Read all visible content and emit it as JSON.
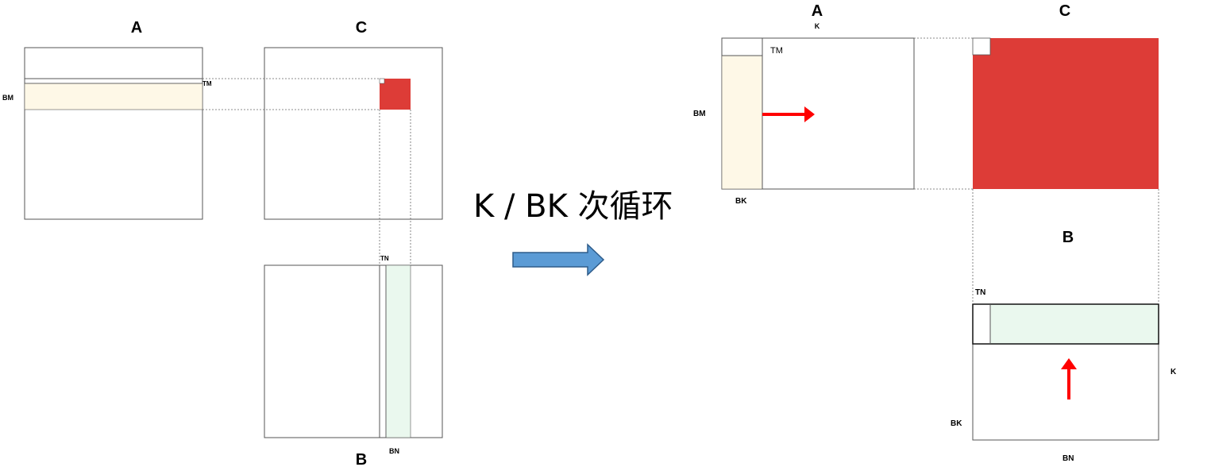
{
  "left": {
    "a_title": "A",
    "c_title": "C",
    "b_title": "B",
    "label_bm": "BM",
    "label_tm": "TM",
    "label_tn": "TN",
    "label_bn": "BN"
  },
  "middle": {
    "caption": "K / BK 次循环"
  },
  "right": {
    "a_title": "A",
    "c_title": "C",
    "b_title": "B",
    "label_k_top": "K",
    "label_tm": "TM",
    "label_bm": "BM",
    "label_bk_a": "BK",
    "label_tn": "TN",
    "label_k_b": "K",
    "label_bk_b": "BK",
    "label_bn": "BN"
  },
  "colors": {
    "a_strip": "#fef8e7",
    "b_strip": "#eaf8ee",
    "c_block": "#dd3c37",
    "red_arrow": "#ff0000",
    "blue_arrow": "#5b9bd5",
    "blue_arrow_stroke": "#2e5c8a"
  }
}
